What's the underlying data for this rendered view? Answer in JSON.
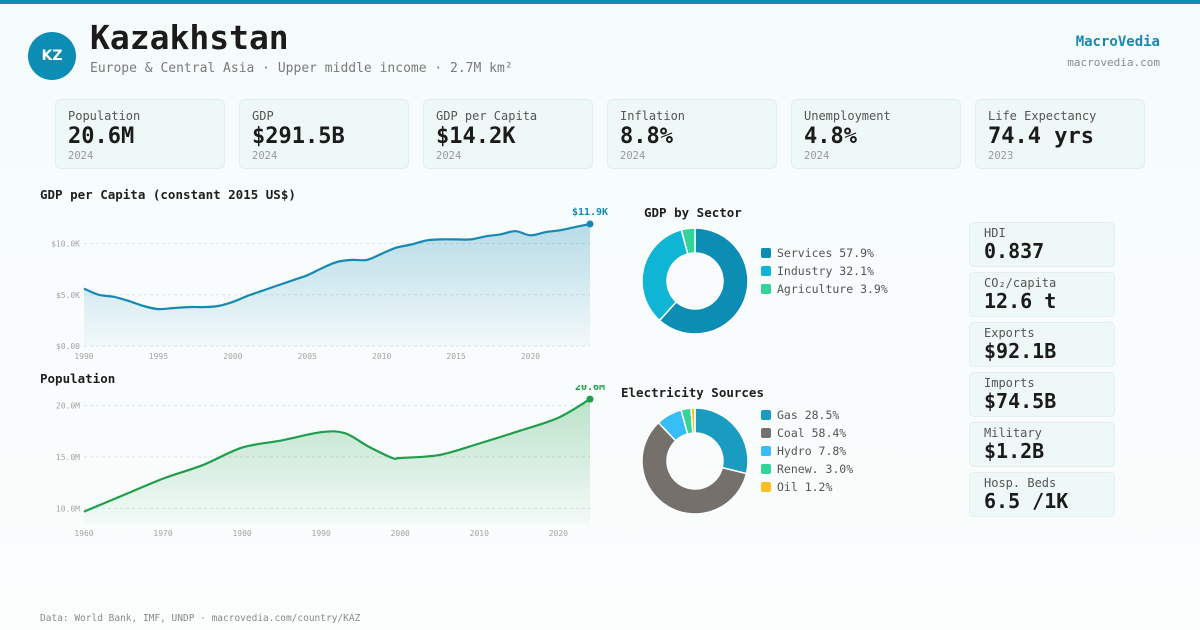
{
  "header": {
    "badge": "KZ",
    "title": "Kazakhstan",
    "subtitle": "Europe & Central Asia · Upper middle income · 2.7M km²",
    "brand": "MacroVedia",
    "brand_url": "macrovedia.com"
  },
  "kpis": [
    {
      "label": "Population",
      "value": "20.6M",
      "year": "2024"
    },
    {
      "label": "GDP",
      "value": "$291.5B",
      "year": "2024"
    },
    {
      "label": "GDP per Capita",
      "value": "$14.2K",
      "year": "2024"
    },
    {
      "label": "Inflation",
      "value": "8.8%",
      "year": "2024"
    },
    {
      "label": "Unemployment",
      "value": "4.8%",
      "year": "2024"
    },
    {
      "label": "Life Expectancy",
      "value": "74.4 yrs",
      "year": "2023"
    }
  ],
  "stats": [
    {
      "label": "HDI",
      "value": "0.837"
    },
    {
      "label": "CO₂/capita",
      "value": "12.6 t"
    },
    {
      "label": "Exports",
      "value": "$92.1B"
    },
    {
      "label": "Imports",
      "value": "$74.5B"
    },
    {
      "label": "Military",
      "value": "$1.2B"
    },
    {
      "label": "Hosp. Beds",
      "value": "6.5 /1K"
    }
  ],
  "colors": {
    "accent": "#0f8fae",
    "gdp_line": "#1689b3",
    "pop_line": "#1e9e4a",
    "services": "#0b8db4",
    "industry": "#0fb5d4",
    "agriculture": "#34d399",
    "gas": "#1a9bc0",
    "coal": "#75706c",
    "hydro": "#38bdf8",
    "renew": "#34d399",
    "oil": "#fbbf24"
  },
  "footer": "Data: World Bank, IMF, UNDP · macrovedia.com/country/KAZ",
  "chart_data": [
    {
      "type": "area",
      "title": "GDP per Capita (constant 2015 US$)",
      "end_label": "$11.9K",
      "x": [
        1990,
        1991,
        1992,
        1993,
        1994,
        1995,
        1996,
        1997,
        1998,
        1999,
        2000,
        2001,
        2002,
        2003,
        2004,
        2005,
        2006,
        2007,
        2008,
        2009,
        2010,
        2011,
        2012,
        2013,
        2014,
        2015,
        2016,
        2017,
        2018,
        2019,
        2020,
        2021,
        2022,
        2023,
        2024
      ],
      "values": [
        5600,
        5000,
        4800,
        4400,
        3900,
        3600,
        3700,
        3800,
        3800,
        3900,
        4300,
        4900,
        5400,
        5900,
        6400,
        6900,
        7600,
        8200,
        8400,
        8400,
        9000,
        9600,
        9900,
        10300,
        10400,
        10400,
        10400,
        10700,
        10900,
        11200,
        10800,
        11100,
        11300,
        11600,
        11900
      ],
      "xticks": [
        "1990",
        "1995",
        "2000",
        "2005",
        "2010",
        "2015",
        "2020"
      ],
      "yticks": [
        "$0.00",
        "$5.0K",
        "$10.0K"
      ],
      "ylim": [
        0,
        12000
      ]
    },
    {
      "type": "area",
      "title": "Population",
      "end_label": "20.6M",
      "x": [
        1960,
        1965,
        1970,
        1975,
        1980,
        1985,
        1990,
        1993,
        1996,
        1999,
        2000,
        2005,
        2010,
        2015,
        2020,
        2024
      ],
      "values": [
        9.7,
        11.3,
        12.9,
        14.2,
        15.9,
        16.6,
        17.4,
        17.3,
        16.0,
        14.9,
        14.9,
        15.2,
        16.3,
        17.5,
        18.8,
        20.6
      ],
      "xticks": [
        "1960",
        "1970",
        "1980",
        "1990",
        "2000",
        "2010",
        "2020"
      ],
      "yticks": [
        "10.0M",
        "15.0M",
        "20.0M"
      ],
      "ylim": [
        8.5,
        21
      ]
    },
    {
      "type": "pie",
      "title": "GDP by Sector",
      "categories": [
        "Services",
        "Industry",
        "Agriculture"
      ],
      "values": [
        57.9,
        32.1,
        3.9
      ],
      "legend": [
        "Services 57.9%",
        "Industry 32.1%",
        "Agriculture 3.9%"
      ],
      "colors": [
        "#0b8db4",
        "#0fb5d4",
        "#34d399"
      ]
    },
    {
      "type": "pie",
      "title": "Electricity Sources",
      "categories": [
        "Gas",
        "Coal",
        "Hydro",
        "Renew.",
        "Oil"
      ],
      "values": [
        28.5,
        58.4,
        7.8,
        3.0,
        1.2
      ],
      "legend": [
        "Gas 28.5%",
        "Coal 58.4%",
        "Hydro 7.8%",
        "Renew. 3.0%",
        "Oil 1.2%"
      ],
      "colors": [
        "#1a9bc0",
        "#75706c",
        "#38bdf8",
        "#34d399",
        "#fbbf24"
      ]
    }
  ]
}
